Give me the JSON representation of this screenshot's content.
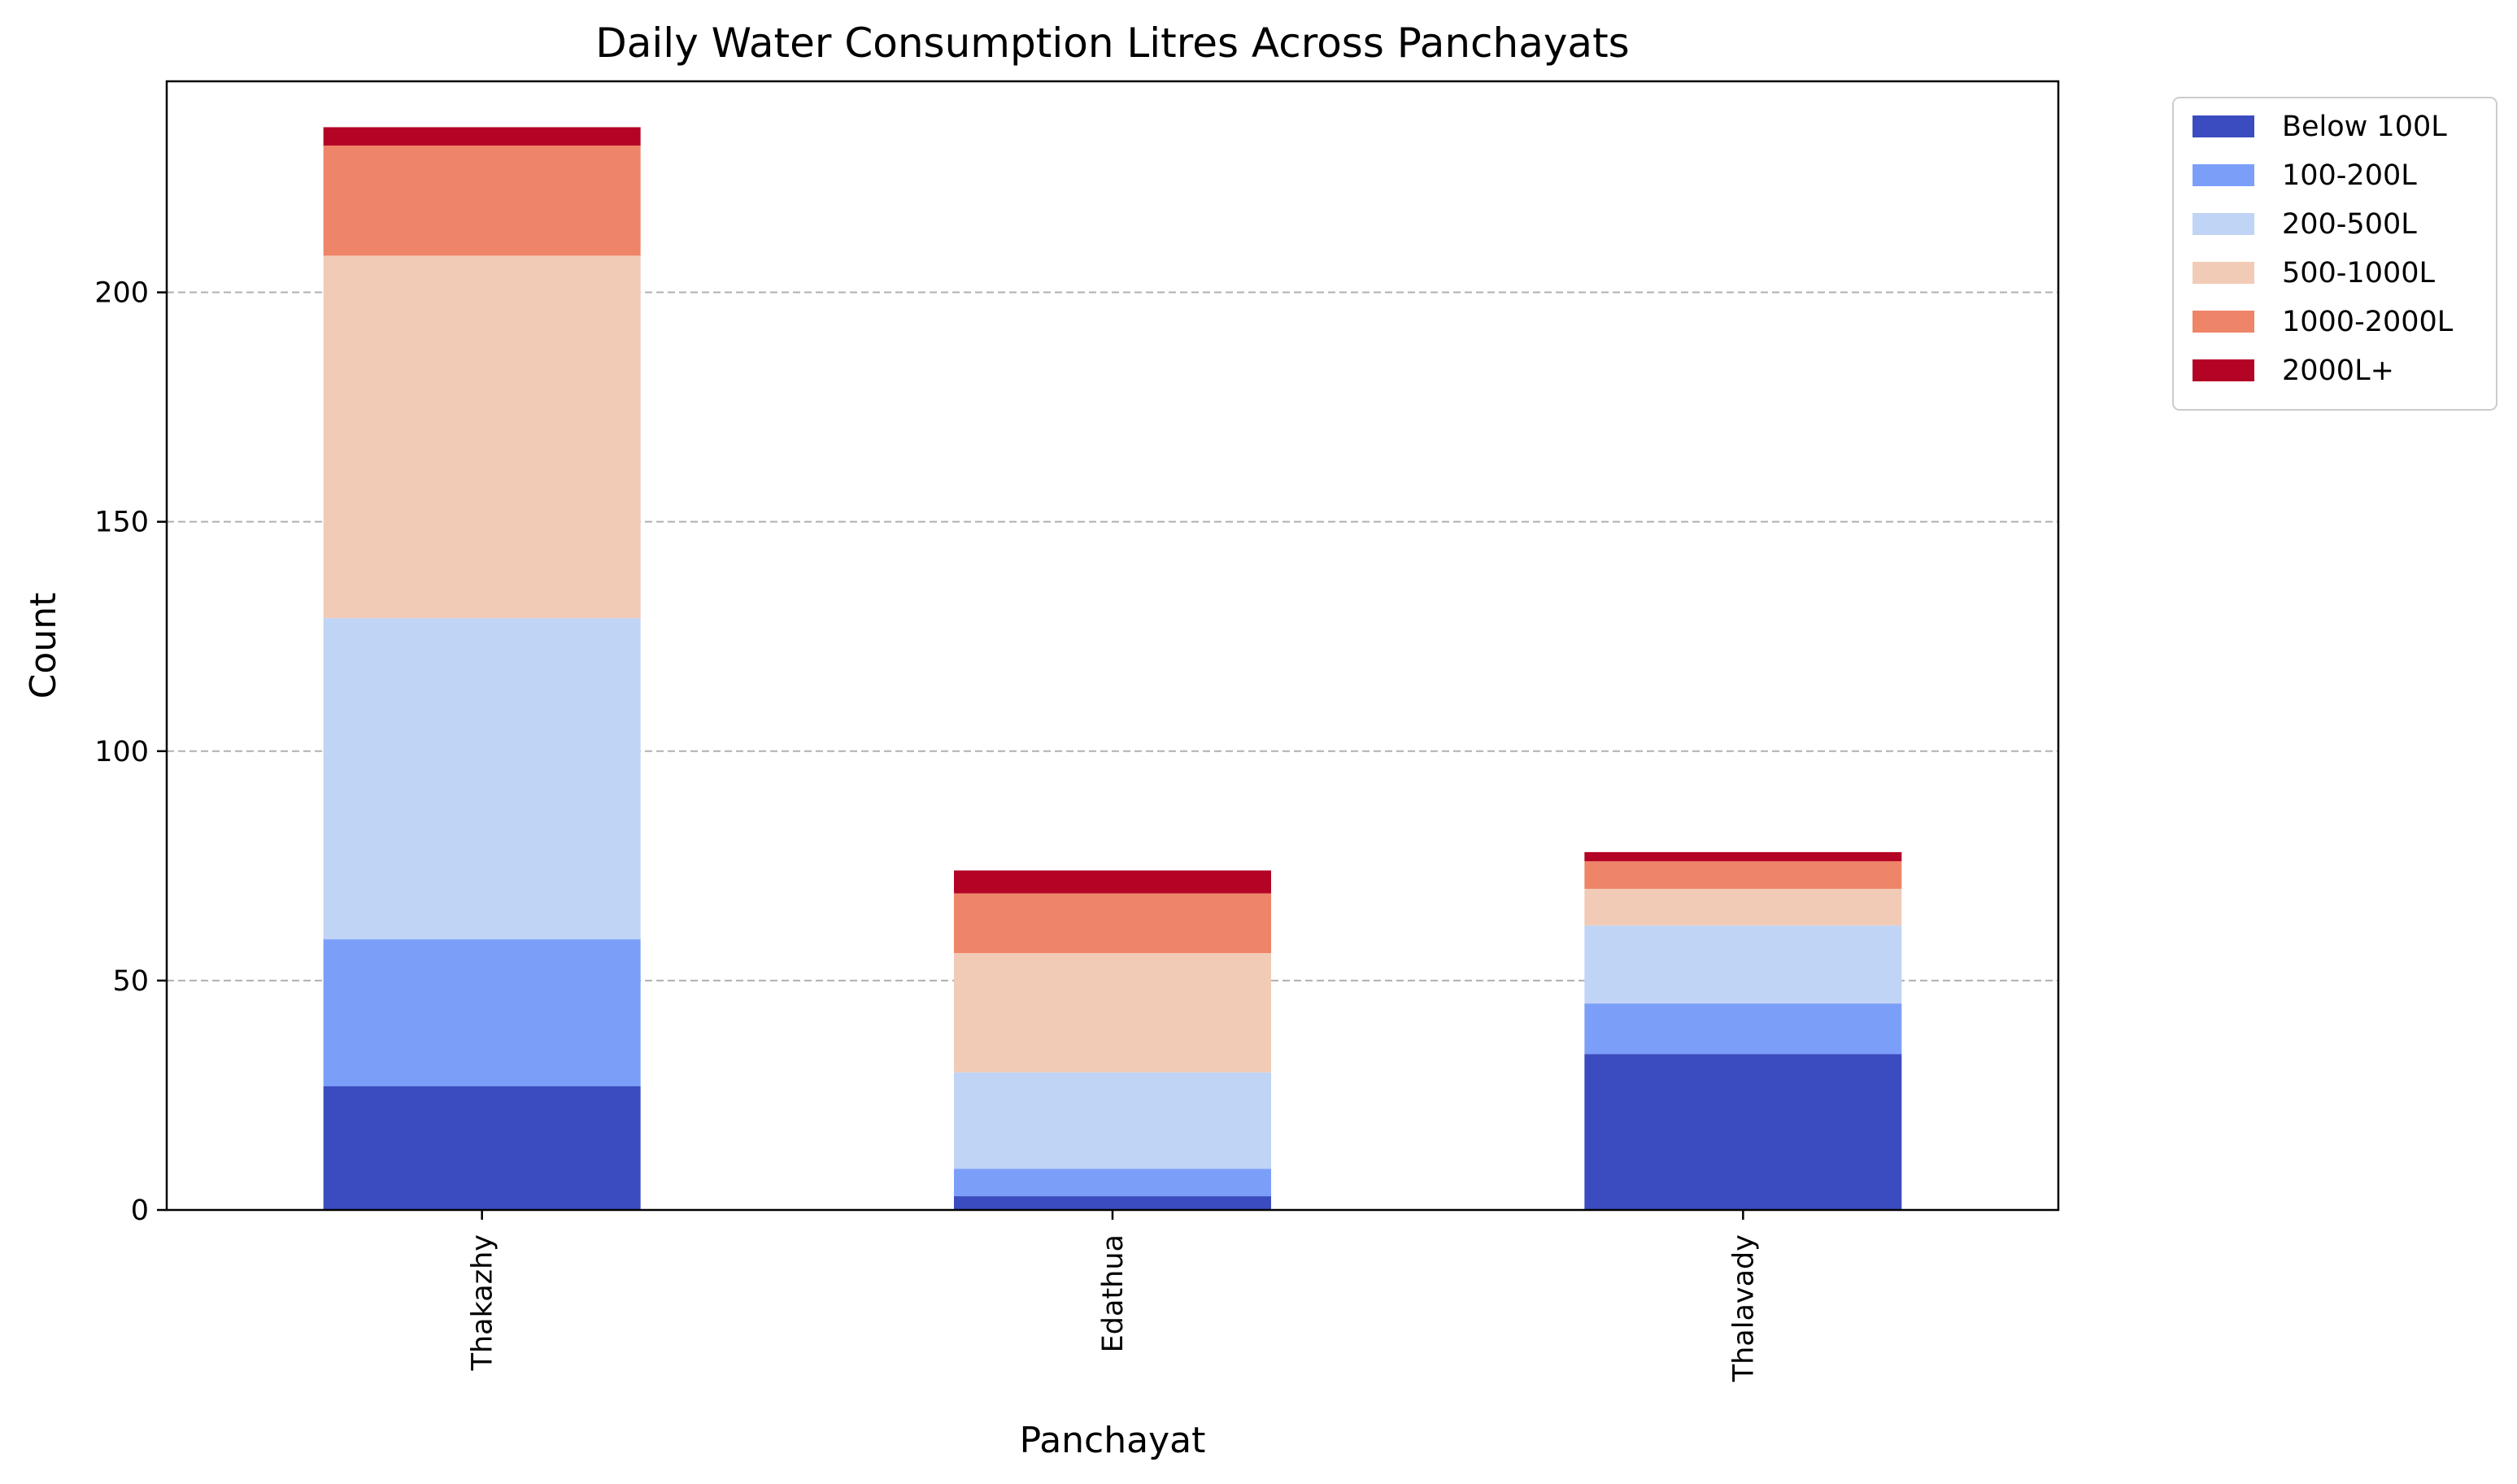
{
  "chart_data": {
    "type": "bar",
    "stacked": true,
    "title": "Daily Water Consumption Litres Across Panchayats",
    "xlabel": "Panchayat",
    "ylabel": "Count",
    "ylim": [
      0,
      246
    ],
    "yticks": [
      0,
      50,
      100,
      150,
      200
    ],
    "grid": "y-dashed",
    "legend_position": "outside-top-right",
    "categories": [
      "Thakazhy",
      "Edathua",
      "Thalavady"
    ],
    "series": [
      {
        "name": "Below 100L",
        "color": "#3b4cc0",
        "values": [
          27,
          3,
          34
        ]
      },
      {
        "name": "100-200L",
        "color": "#7b9ff9",
        "values": [
          32,
          6,
          11
        ]
      },
      {
        "name": "200-500L",
        "color": "#c0d4f5",
        "values": [
          70,
          21,
          17
        ]
      },
      {
        "name": "500-1000L",
        "color": "#f2cbb7",
        "values": [
          79,
          26,
          8
        ]
      },
      {
        "name": "1000-2000L",
        "color": "#ee8468",
        "values": [
          24,
          13,
          6
        ]
      },
      {
        "name": "2000L+",
        "color": "#b40426",
        "values": [
          4,
          5,
          2
        ]
      }
    ]
  }
}
